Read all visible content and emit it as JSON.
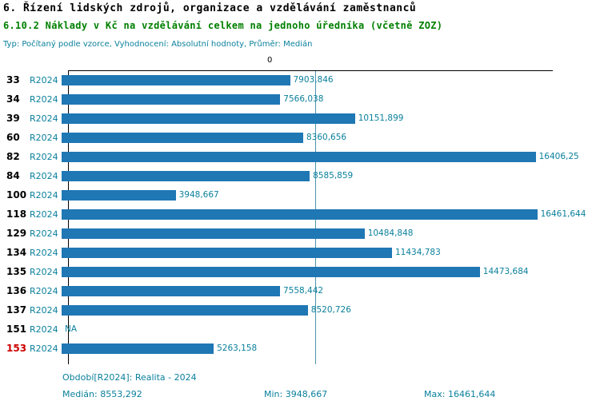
{
  "header": {
    "title_line1": "6. Řízení lidských zdrojů, organizace a vzdělávání zaměstnanců",
    "title_line2": "6.10.2 Náklady v Kč na vzdělávání celkem na jednoho úředníka (včetně ZOZ)",
    "subtitle": "Typ: Počítaný podle vzorce, Vyhodnocení: Absolutní hodnoty, Průměr: Medián"
  },
  "colors": {
    "bar": "#1f77b4",
    "accent_teal": "#0b809c",
    "highlight_red": "#cc0000",
    "title_green": "#008000",
    "median_line": "#4d94ad"
  },
  "chart_data": {
    "type": "bar",
    "orientation": "horizontal",
    "series_label": "R2024",
    "axis_top_label": "0",
    "categories": [
      "33",
      "34",
      "39",
      "60",
      "82",
      "84",
      "100",
      "118",
      "129",
      "134",
      "135",
      "136",
      "137",
      "151",
      "153"
    ],
    "values": [
      7903.846,
      7566.038,
      10151.899,
      8360.656,
      16406.25,
      8585.859,
      3948.667,
      16461.644,
      10484.848,
      11434.783,
      14473.684,
      7558.442,
      8520.726,
      null,
      5263.158
    ],
    "value_labels": [
      "7903,846",
      "7566,038",
      "10151,899",
      "8360,656",
      "16406,25",
      "8585,859",
      "3948,667",
      "16461,644",
      "10484,848",
      "11434,783",
      "14473,684",
      "7558,442",
      "8520,726",
      "NA",
      "5263,158"
    ],
    "highlight_category": "153",
    "median_value": 8553.292,
    "xlim": [
      0,
      16750
    ],
    "grid": false,
    "legend": "none"
  },
  "footer": {
    "period": "Období[R2024]: Realita - 2024",
    "median": "Medián: 8553,292",
    "min": "Min: 3948,667",
    "max": "Max: 16461,644"
  }
}
